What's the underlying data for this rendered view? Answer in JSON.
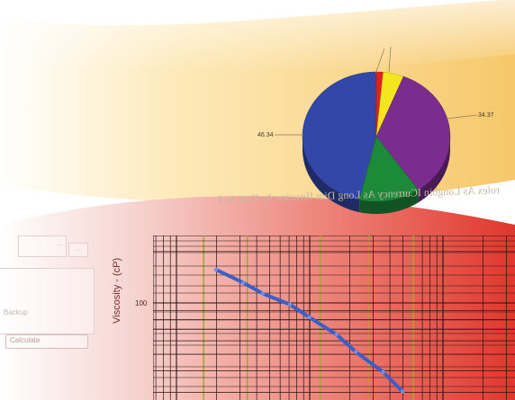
{
  "pie": {
    "label_left": "46.34",
    "label_right": "34.37",
    "slices": [
      {
        "name": "blue",
        "value": 46.34,
        "color": "#3347a8"
      },
      {
        "name": "red",
        "value": 1.5,
        "color": "#e02020"
      },
      {
        "name": "yellow",
        "value": 4.5,
        "color": "#f3e61d"
      },
      {
        "name": "purple",
        "value": 34.37,
        "color": "#7a2d8f"
      },
      {
        "name": "green",
        "value": 13.29,
        "color": "#1d8a3a"
      }
    ]
  },
  "ribbon_text": "rolex As Longbin ICurrency As Long Dim IInsatine As IInst  As I",
  "ghost_ui": {
    "row1": "…",
    "row2": "…",
    "backup_label": "Backup",
    "calculate_label": "Calculate"
  },
  "chart_data": {
    "type": "line",
    "ylabel": "Viscosity - (cP)",
    "y_tick_label": "100",
    "xscale": "log",
    "yscale": "log",
    "grid": true,
    "series": [
      {
        "color": "#3a5fc8",
        "x": [
          1.0,
          1.5,
          2.0,
          3.0,
          4.0,
          6.0,
          8.0,
          12.0,
          16.0
        ],
        "y": [
          150,
          128,
          112,
          98,
          84,
          68,
          55,
          43,
          34
        ]
      }
    ]
  },
  "colors": {
    "yellow_band": "#f7cf76",
    "red_band": "#e23a30",
    "grid_line": "#2a1212",
    "olive_line": "#a8a43a"
  }
}
